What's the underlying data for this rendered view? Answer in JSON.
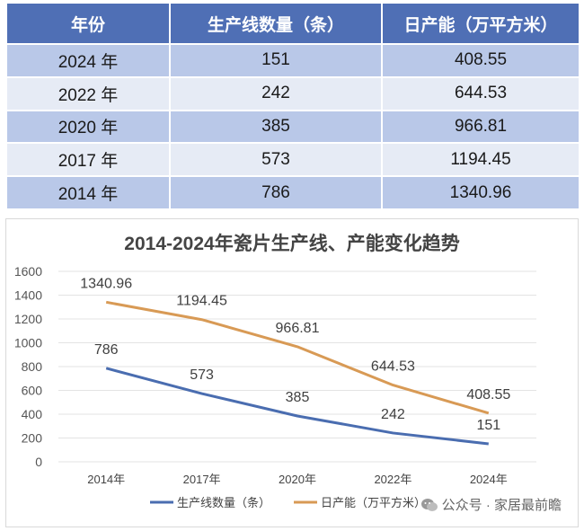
{
  "table": {
    "headers": [
      "年份",
      "生产线数量（条）",
      "日产能（万平方米）"
    ],
    "rows": [
      [
        "2024 年",
        "151",
        "408.55"
      ],
      [
        "2022 年",
        "242",
        "644.53"
      ],
      [
        "2020 年",
        "385",
        "966.81"
      ],
      [
        "2017 年",
        "573",
        "1194.45"
      ],
      [
        "2014 年",
        "786",
        "1340.96"
      ]
    ]
  },
  "chart_data": {
    "type": "line",
    "title": "2014-2024年瓷片生产线、产能变化趋势",
    "categories": [
      "2014年",
      "2017年",
      "2020年",
      "2022年",
      "2024年"
    ],
    "series": [
      {
        "name": "生产线数量（条）",
        "values": [
          786,
          573,
          385,
          242,
          151
        ],
        "labels": [
          "786",
          "573",
          "385",
          "242",
          "151"
        ],
        "color": "#4a6db0"
      },
      {
        "name": "日产能（万平方米）",
        "values": [
          1340.96,
          1194.45,
          966.81,
          644.53,
          408.55
        ],
        "labels": [
          "1340.96",
          "1194.45",
          "966.81",
          "644.53",
          "408.55"
        ],
        "color": "#d89a55"
      }
    ],
    "ylim": [
      0,
      1600
    ],
    "yticks": [
      "0",
      "200",
      "400",
      "600",
      "800",
      "1000",
      "1200",
      "1400",
      "1600"
    ],
    "grid": true,
    "legend_position": "bottom"
  },
  "watermark": {
    "text": "公众号 · 家居最前瞻",
    "icon": "wechat-icon"
  }
}
